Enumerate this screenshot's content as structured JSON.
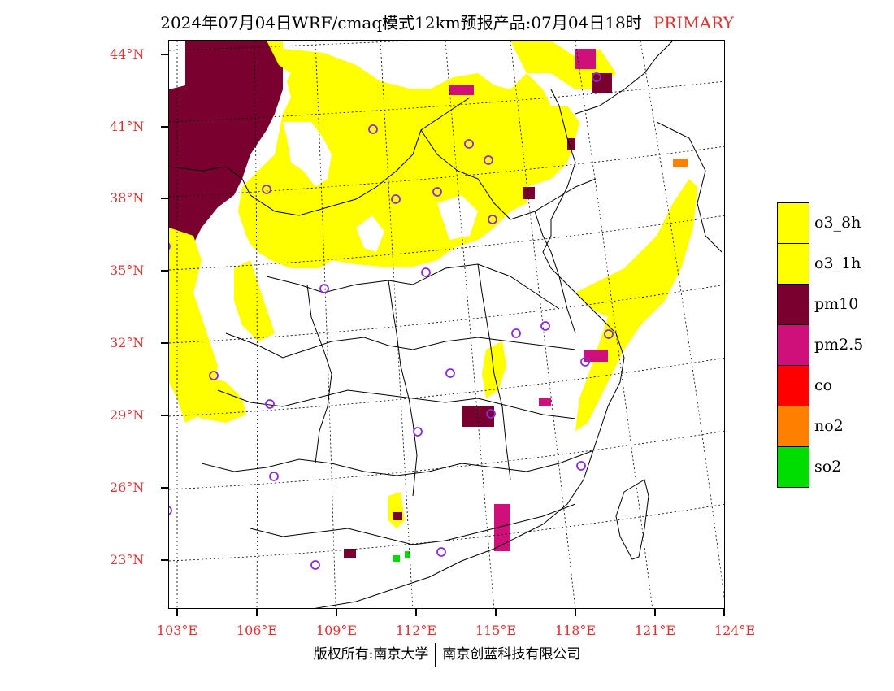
{
  "title": "2024年07月04日WRF/cmaq模式12km预报产品:07月04日18时",
  "tag": "PRIMARY",
  "latitude_labels": [
    "44°N",
    "41°N",
    "38°N",
    "35°N",
    "32°N",
    "29°N",
    "26°N",
    "23°N"
  ],
  "longitude_labels": [
    "103°E",
    "106°E",
    "109°E",
    "112°E",
    "115°E",
    "118°E",
    "121°E",
    "124°E"
  ],
  "legend": [
    {
      "label": "o3_8h",
      "color": "#ffff00"
    },
    {
      "label": "o3_1h",
      "color": "#ffff00"
    },
    {
      "label": "pm10",
      "color": "#7a0030"
    },
    {
      "label": "pm2.5",
      "color": "#d0107a"
    },
    {
      "label": "co",
      "color": "#ff0000"
    },
    {
      "label": "no2",
      "color": "#ff7f00"
    },
    {
      "label": "so2",
      "color": "#00dd00"
    }
  ],
  "footer": {
    "left": "版权所有:南京大学",
    "right": "南京创蓝科技有限公司"
  }
}
